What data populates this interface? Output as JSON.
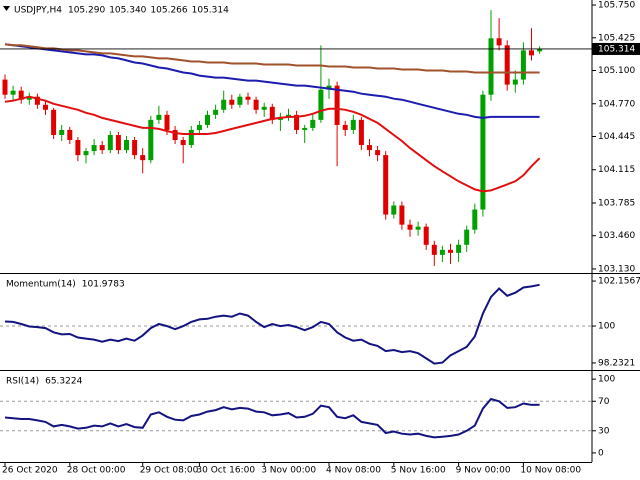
{
  "chart_data": [
    {
      "type": "candlestick",
      "title": "USDJPY,H4",
      "ohlc_labels": [
        "105.290",
        "105.340",
        "105.266",
        "105.314"
      ],
      "up_color": "#00a000",
      "down_color": "#e00000",
      "ylim": [
        103.09,
        105.8
      ],
      "yticks": [
        {
          "value": 105.75,
          "label": "105.750"
        },
        105.425,
        {
          "value": 105.1,
          "label": "105.100"
        },
        {
          "value": 104.77,
          "label": "104.770"
        },
        104.445,
        104.115,
        103.785,
        {
          "value": 103.46,
          "label": "103.460"
        },
        {
          "value": 103.13,
          "label": "103.130"
        }
      ],
      "x": [
        "26 Oct 2020",
        null,
        null,
        null,
        null,
        null,
        null,
        null,
        "28 Oct 00:00",
        null,
        null,
        null,
        null,
        null,
        null,
        null,
        null,
        "29 Oct 08:00",
        null,
        null,
        null,
        null,
        null,
        null,
        "30 Oct 16:00",
        null,
        null,
        null,
        null,
        null,
        null,
        null,
        "3 Nov 00:00",
        null,
        null,
        null,
        null,
        null,
        null,
        null,
        "4 Nov 08:00",
        null,
        null,
        null,
        null,
        null,
        null,
        null,
        "5 Nov 16:00",
        null,
        null,
        null,
        null,
        null,
        null,
        null,
        "9 Nov 00:00",
        null,
        null,
        null,
        null,
        null,
        null,
        null,
        "10 Nov 08:00",
        null,
        null
      ],
      "ohlc": [
        [
          105.01,
          105.06,
          104.82,
          104.86
        ],
        [
          104.86,
          104.95,
          104.8,
          104.9
        ],
        [
          104.9,
          104.94,
          104.77,
          104.81
        ],
        [
          104.81,
          104.88,
          104.76,
          104.84
        ],
        [
          104.84,
          104.87,
          104.72,
          104.76
        ],
        [
          104.76,
          104.8,
          104.66,
          104.71
        ],
        [
          104.71,
          104.73,
          104.42,
          104.46
        ],
        [
          104.46,
          104.56,
          104.4,
          104.51
        ],
        [
          104.51,
          104.54,
          104.37,
          104.41
        ],
        [
          104.41,
          104.44,
          104.2,
          104.26
        ],
        [
          104.26,
          104.33,
          104.18,
          104.3
        ],
        [
          104.3,
          104.42,
          104.26,
          104.36
        ],
        [
          104.36,
          104.4,
          104.27,
          104.31
        ],
        [
          104.31,
          104.5,
          104.28,
          104.46
        ],
        [
          104.46,
          104.49,
          104.27,
          104.31
        ],
        [
          104.31,
          104.45,
          104.28,
          104.41
        ],
        [
          104.41,
          104.44,
          104.22,
          104.26
        ],
        [
          104.26,
          104.33,
          104.08,
          104.21
        ],
        [
          104.21,
          104.65,
          104.18,
          104.61
        ],
        [
          104.61,
          104.75,
          104.57,
          104.66
        ],
        [
          104.66,
          104.7,
          104.46,
          104.51
        ],
        [
          104.51,
          104.55,
          104.37,
          104.41
        ],
        [
          104.41,
          104.44,
          104.18,
          104.36
        ],
        [
          104.36,
          104.55,
          104.33,
          104.51
        ],
        [
          104.51,
          104.6,
          104.47,
          104.56
        ],
        [
          104.56,
          104.7,
          104.53,
          104.66
        ],
        [
          104.66,
          104.76,
          104.62,
          104.71
        ],
        [
          104.71,
          104.9,
          104.68,
          104.81
        ],
        [
          104.81,
          104.86,
          104.72,
          104.76
        ],
        [
          104.76,
          104.87,
          104.73,
          104.84
        ],
        [
          104.84,
          104.88,
          104.76,
          104.81
        ],
        [
          104.81,
          104.84,
          104.67,
          104.71
        ],
        [
          104.71,
          104.78,
          104.64,
          104.74
        ],
        [
          104.74,
          104.77,
          104.57,
          104.61
        ],
        [
          104.61,
          104.68,
          104.5,
          104.64
        ],
        [
          104.64,
          104.72,
          104.6,
          104.66
        ],
        [
          104.66,
          104.7,
          104.47,
          104.51
        ],
        [
          104.51,
          104.56,
          104.38,
          104.53
        ],
        [
          104.53,
          104.66,
          104.5,
          104.61
        ],
        [
          104.61,
          105.35,
          104.58,
          104.91
        ],
        [
          104.91,
          105.02,
          104.82,
          104.95
        ],
        [
          104.95,
          104.99,
          104.15,
          104.56
        ],
        [
          104.56,
          104.6,
          104.45,
          104.51
        ],
        [
          104.51,
          104.66,
          104.47,
          104.61
        ],
        [
          104.61,
          104.64,
          104.31,
          104.36
        ],
        [
          104.36,
          104.42,
          104.25,
          104.31
        ],
        [
          104.31,
          104.35,
          104.2,
          104.26
        ],
        [
          104.26,
          104.3,
          103.62,
          103.67
        ],
        [
          103.67,
          103.8,
          103.63,
          103.76
        ],
        [
          103.76,
          103.8,
          103.52,
          103.57
        ],
        [
          103.57,
          103.62,
          103.45,
          103.52
        ],
        [
          103.52,
          103.6,
          103.46,
          103.55
        ],
        [
          103.55,
          103.58,
          103.32,
          103.37
        ],
        [
          103.37,
          103.41,
          103.16,
          103.27
        ],
        [
          103.27,
          103.36,
          103.2,
          103.32
        ],
        [
          103.32,
          103.38,
          103.18,
          103.29
        ],
        [
          103.29,
          103.42,
          103.2,
          103.37
        ],
        [
          103.37,
          103.56,
          103.3,
          103.52
        ],
        [
          103.52,
          103.78,
          103.48,
          103.72
        ],
        [
          103.72,
          104.9,
          103.65,
          104.86
        ],
        [
          104.86,
          105.7,
          104.8,
          105.42
        ],
        [
          105.42,
          105.62,
          105.3,
          105.35
        ],
        [
          105.35,
          105.4,
          104.9,
          104.96
        ],
        [
          104.96,
          105.1,
          104.88,
          105.01
        ],
        [
          105.01,
          105.38,
          104.96,
          105.3
        ],
        [
          105.3,
          105.52,
          105.2,
          105.25
        ],
        [
          105.29,
          105.34,
          105.266,
          105.314
        ]
      ],
      "series": [
        {
          "color": "#e01010",
          "values": [
            104.79,
            104.8,
            104.82,
            104.84,
            104.82,
            104.8,
            104.77,
            104.75,
            104.73,
            104.71,
            104.68,
            104.66,
            104.63,
            104.61,
            104.59,
            104.57,
            104.55,
            104.53,
            104.53,
            104.52,
            104.5,
            104.48,
            104.47,
            104.47,
            104.47,
            104.47,
            104.48,
            104.5,
            104.52,
            104.54,
            104.56,
            104.58,
            104.6,
            104.62,
            104.63,
            104.64,
            104.64,
            104.65,
            104.67,
            104.7,
            104.72,
            104.72,
            104.71,
            104.69,
            104.66,
            104.62,
            104.58,
            104.52,
            104.46,
            104.4,
            104.33,
            104.27,
            104.21,
            104.15,
            104.1,
            104.05,
            104.0,
            103.96,
            103.92,
            103.9,
            103.91,
            103.94,
            103.97,
            104.0,
            104.06,
            104.15,
            104.23
          ]
        },
        {
          "color": "#1c1cb0",
          "values": [
            105.36,
            105.35,
            105.34,
            105.33,
            105.32,
            105.31,
            105.3,
            105.29,
            105.28,
            105.27,
            105.26,
            105.26,
            105.25,
            105.23,
            105.22,
            105.2,
            105.18,
            105.17,
            105.15,
            105.13,
            105.12,
            105.1,
            105.08,
            105.07,
            105.05,
            105.04,
            105.03,
            105.03,
            105.02,
            105.01,
            105.0,
            105.0,
            104.99,
            104.98,
            104.97,
            104.96,
            104.95,
            104.95,
            104.94,
            104.93,
            104.92,
            104.91,
            104.9,
            104.89,
            104.87,
            104.86,
            104.85,
            104.84,
            104.82,
            104.81,
            104.79,
            104.77,
            104.75,
            104.73,
            104.71,
            104.69,
            104.67,
            104.66,
            104.64,
            104.63,
            104.64,
            104.64,
            104.64,
            104.64,
            104.64,
            104.64,
            104.64
          ]
        },
        {
          "color": "#a0522d",
          "values": [
            105.36,
            105.35,
            105.35,
            105.34,
            105.33,
            105.32,
            105.32,
            105.31,
            105.3,
            105.3,
            105.29,
            105.28,
            105.27,
            105.27,
            105.26,
            105.25,
            105.24,
            105.24,
            105.23,
            105.22,
            105.22,
            105.21,
            105.2,
            105.19,
            105.19,
            105.18,
            105.18,
            105.18,
            105.17,
            105.17,
            105.17,
            105.17,
            105.16,
            105.16,
            105.16,
            105.16,
            105.15,
            105.15,
            105.15,
            105.15,
            105.14,
            105.14,
            105.14,
            105.13,
            105.13,
            105.13,
            105.12,
            105.12,
            105.12,
            105.11,
            105.11,
            105.11,
            105.1,
            105.1,
            105.1,
            105.09,
            105.09,
            105.09,
            105.08,
            105.08,
            105.08,
            105.08,
            105.08,
            105.08,
            105.08,
            105.08,
            105.08
          ]
        }
      ]
    },
    {
      "type": "line",
      "title": "Momentum(14)",
      "last_value": 101.9783,
      "ylim": [
        97.893,
        102.496
      ],
      "yticks": [
        102.1567,
        100,
        98.2321
      ],
      "levels": [
        100
      ],
      "series": [
        {
          "color": "#141480",
          "values": [
            100.22,
            100.2,
            100.1,
            99.98,
            99.95,
            99.9,
            99.7,
            99.6,
            99.62,
            99.45,
            99.4,
            99.35,
            99.25,
            99.35,
            99.28,
            99.4,
            99.3,
            99.55,
            99.9,
            100.1,
            100.0,
            99.85,
            100.0,
            100.2,
            100.32,
            100.35,
            100.45,
            100.5,
            100.45,
            100.6,
            100.5,
            100.2,
            99.95,
            100.1,
            100.0,
            100.05,
            99.95,
            99.8,
            99.95,
            100.2,
            100.1,
            99.7,
            99.45,
            99.3,
            99.35,
            99.15,
            99.05,
            98.8,
            98.85,
            98.75,
            98.8,
            98.7,
            98.45,
            98.2,
            98.25,
            98.6,
            98.8,
            99.0,
            99.5,
            100.6,
            101.4,
            101.8,
            101.45,
            101.6,
            101.85,
            101.9,
            101.9783
          ]
        }
      ]
    },
    {
      "type": "line",
      "title": "RSI(14)",
      "last_value": 65.3224,
      "ylim": [
        -12.3,
        111
      ],
      "yticks": [
        100,
        70,
        30,
        0
      ],
      "levels": [
        70,
        30
      ],
      "series": [
        {
          "color": "#141480",
          "values": [
            48,
            47,
            46,
            46,
            44,
            42,
            36,
            38,
            36,
            33,
            34,
            37,
            36,
            40,
            36,
            39,
            35,
            34,
            52,
            55,
            49,
            45,
            44,
            50,
            52,
            56,
            58,
            62,
            59,
            61,
            60,
            56,
            55,
            51,
            52,
            54,
            48,
            49,
            53,
            64,
            62,
            49,
            47,
            51,
            42,
            40,
            38,
            27,
            29,
            26,
            25,
            26,
            23,
            21,
            22,
            23,
            25,
            30,
            37,
            60,
            73,
            70,
            61,
            62,
            67,
            65,
            65.3224
          ]
        }
      ]
    }
  ]
}
